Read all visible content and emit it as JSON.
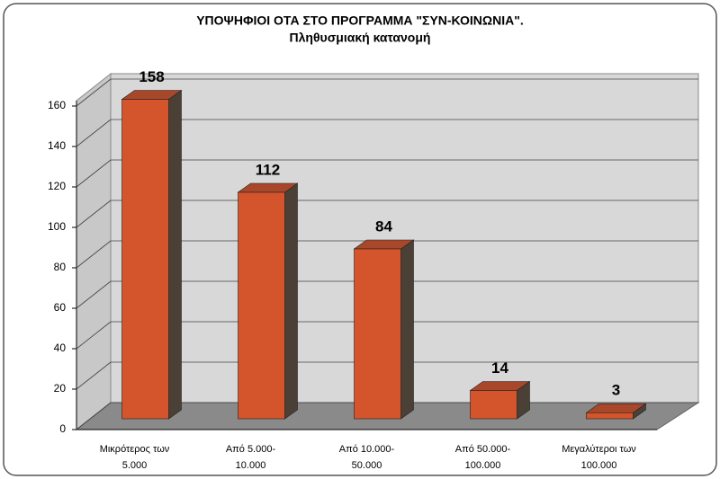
{
  "chart_data": {
    "type": "bar3d",
    "title": "ΥΠΟΨΗΦΙΟΙ ΟΤΑ ΣΤΟ ΠΡΟΓΡΑΜΜΑ \"ΣΥΝ-ΚΟΙΝΩΝΙΑ\".",
    "subtitle": "Πληθυσμιακή κατανομή",
    "categories": [
      [
        "Μικρότερος των",
        "5.000"
      ],
      [
        "Από 5.000-",
        "10.000"
      ],
      [
        "Από 10.000-",
        "50.000"
      ],
      [
        "Από 50.000-",
        "100.000"
      ],
      [
        "Μεγαλύτεροι των",
        "100.000"
      ]
    ],
    "values": [
      158,
      112,
      84,
      14,
      3
    ],
    "color": "#d4542c",
    "ylim": [
      0,
      160
    ],
    "yticks": [
      0,
      20,
      40,
      60,
      80,
      100,
      120,
      140,
      160
    ],
    "grid": true
  }
}
